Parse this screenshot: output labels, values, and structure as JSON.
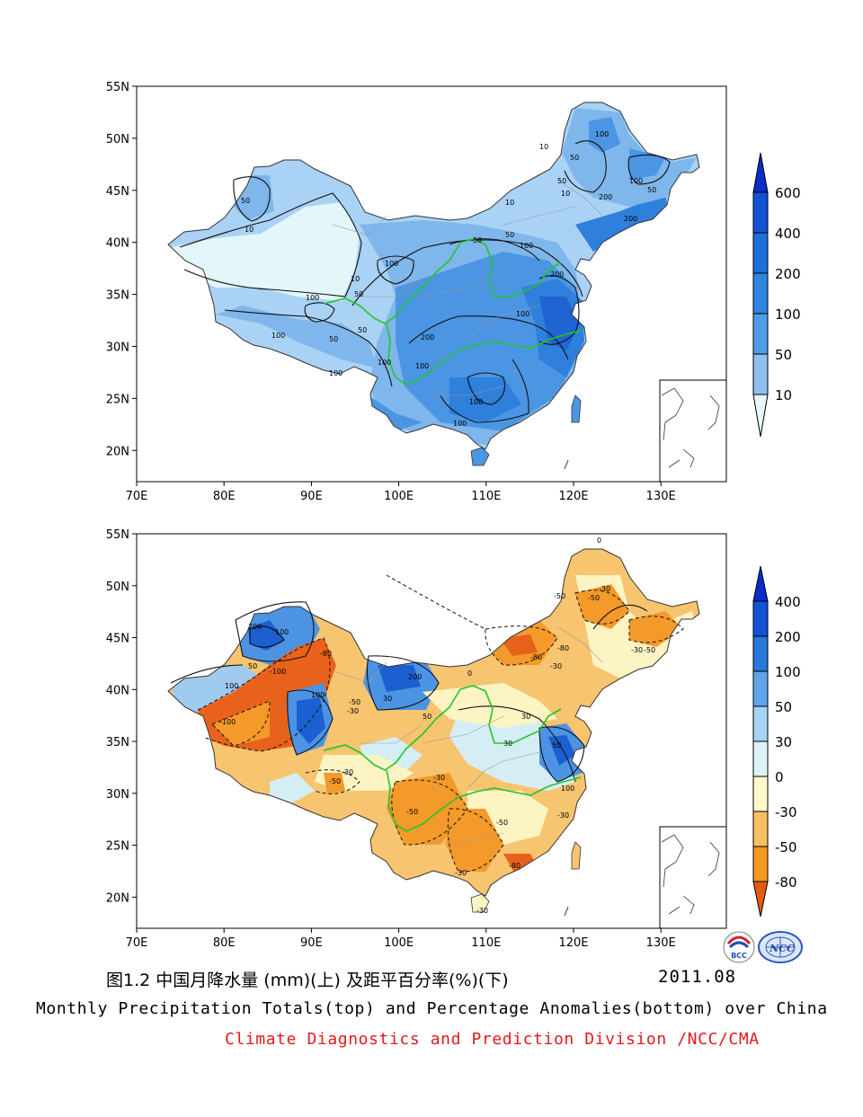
{
  "top_map": {
    "lat_labels": [
      "55N",
      "50N",
      "45N",
      "40N",
      "35N",
      "30N",
      "25N",
      "20N"
    ],
    "lon_labels": [
      "70E",
      "80E",
      "90E",
      "100E",
      "110E",
      "120E",
      "130E"
    ],
    "legend_values": [
      "600",
      "400",
      "200",
      "100",
      "50",
      "10"
    ],
    "legend_colors": [
      "#0a2dc8",
      "#1152d6",
      "#1f6fdb",
      "#2f86e0",
      "#4f9ce6",
      "#8ec0ef",
      "#e8f8fb"
    ],
    "contour_labels": [
      "10",
      "10",
      "10",
      "10",
      "10",
      "50",
      "50",
      "50",
      "50",
      "50",
      "50",
      "50",
      "50",
      "50",
      "100",
      "100",
      "100",
      "100",
      "100",
      "100",
      "100",
      "100",
      "100",
      "100",
      "100",
      "100",
      "200",
      "200",
      "200",
      "200"
    ],
    "fill_colors": {
      "driest": "#e3f6fa",
      "dry": "#a9d2f4",
      "mid": "#7fb6ec",
      "wet": "#4c95e3",
      "wetter": "#2f7fdc",
      "wettest": "#1f64d2"
    }
  },
  "bottom_map": {
    "lat_labels": [
      "55N",
      "50N",
      "45N",
      "40N",
      "35N",
      "30N",
      "25N",
      "20N"
    ],
    "lon_labels": [
      "70E",
      "80E",
      "90E",
      "100E",
      "110E",
      "120E",
      "130E"
    ],
    "legend_values": [
      "400",
      "200",
      "100",
      "50",
      "30",
      "0",
      "-30",
      "-50",
      "-80"
    ],
    "legend_colors": [
      "#0a2dc8",
      "#1152d6",
      "#2a78db",
      "#5ea4e8",
      "#a7d4f2",
      "#dff3f6",
      "#fff8c8",
      "#f6c062",
      "#f39a1f",
      "#e65a12"
    ],
    "contour_labels": [
      "200",
      "100",
      "100",
      "50",
      "100",
      "200",
      "-100",
      "-100",
      "-80",
      "-50",
      "-30",
      "-30",
      "-50",
      "-30",
      "-50",
      "-80",
      "-80",
      "-30",
      "-50",
      "-50",
      "-30",
      "-30",
      "-50",
      "-80",
      "-30",
      "0",
      "0",
      "30",
      "30",
      "50",
      "100",
      "50",
      "30",
      "-50",
      "-30",
      "-30"
    ],
    "fill_colors": {
      "deep_orange": "#e8621b",
      "orange": "#f49a2a",
      "light_orange": "#f7c470",
      "pale_yellow": "#fdf4c4",
      "pale_blue": "#d5eef6",
      "light_blue": "#9fcbef",
      "blue": "#4d93e3",
      "deep_blue": "#1c5fd0"
    }
  },
  "caption": {
    "chinese_title": "图1.2  中国月降水量 (mm)(上) 及距平百分率(%)(下)",
    "date": "2011.08",
    "english_title": "Monthly Precipitation Totals(top) and Percentage Anomalies(bottom) over China",
    "credit": "Climate Diagnostics and Prediction Division /NCC/CMA"
  },
  "logos": {
    "left": "BCC",
    "right": "NCC"
  }
}
